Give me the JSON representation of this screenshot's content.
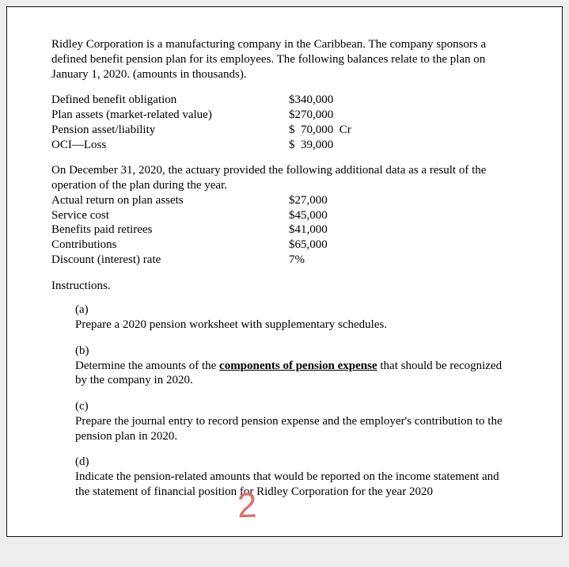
{
  "intro": "Ridley Corporation is a manufacturing company in the Caribbean.  The company sponsors a defined benefit pension plan for its employees. The following balances relate to the plan on January 1, 2020.  (amounts in thousands).",
  "opening": [
    {
      "label": "Defined benefit obligation",
      "value": "$340,000"
    },
    {
      "label": "Plan assets (market-related value)",
      "value": "$270,000"
    },
    {
      "label": "Pension asset/liability",
      "value": "$  70,000  Cr"
    },
    {
      "label": "OCI—Loss",
      "value": "$  39,000"
    }
  ],
  "mid_intro": "On December 31, 2020, the actuary provided the following additional data as a result of the operation of the plan during the year.",
  "year_data": [
    {
      "label": "Actual return on plan assets",
      "value": "$27,000"
    },
    {
      "label": "Service cost",
      "value": "$45,000"
    },
    {
      "label": "Benefits paid retirees",
      "value": "$41,000"
    },
    {
      "label": "Contributions",
      "value": "$65,000"
    },
    {
      "label": "Discount (interest) rate",
      "value": "7%"
    }
  ],
  "instructions_title": "Instructions.",
  "questions": {
    "a": {
      "letter": "(a)",
      "text": "Prepare a 2020 pension worksheet with supplementary schedules."
    },
    "b": {
      "letter": "(b)",
      "pre": "Determine the amounts of the ",
      "ul": "components of pension expense",
      "post": " that should be recognized by the company in 2020."
    },
    "c": {
      "letter": "(c)",
      "text": "Prepare the journal entry to record pension expense and the employer's contribution to the pension plan in 2020."
    },
    "d": {
      "letter": "(d)",
      "text": "Indicate the pension-related amounts that would be reported on the income statement and the statement of financial position for Ridley Corporation for the year 2020"
    }
  },
  "doodle": "2"
}
